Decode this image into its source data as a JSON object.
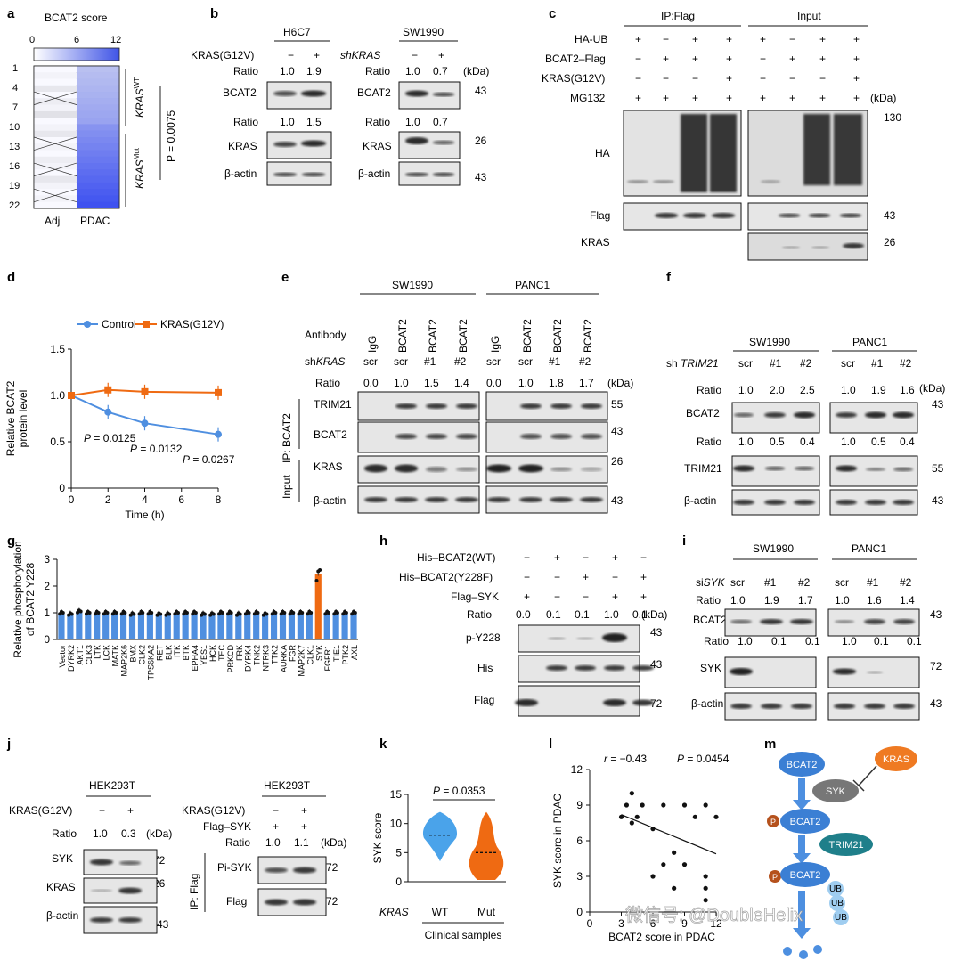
{
  "panels": {
    "a": "a",
    "b": "b",
    "c": "c",
    "d": "d",
    "e": "e",
    "f": "f",
    "g": "g",
    "h": "h",
    "i": "i",
    "j": "j",
    "k": "k",
    "l": "l",
    "m": "m"
  },
  "colors": {
    "blue": "#4f8fe0",
    "orange": "#ef6a12",
    "heat_dark": "#3f54e6",
    "heat_light": "#e8ebfb",
    "grey_bg": "#e6e6e6"
  },
  "a": {
    "title": "BCAT2 score",
    "scale_ticks": [
      "0",
      "6",
      "12"
    ],
    "rows": [
      "1",
      "4",
      "7",
      "10",
      "13",
      "16",
      "19",
      "22"
    ],
    "group_wt": "KRAS",
    "group_wt_sup": "WT",
    "group_mut": "KRAS",
    "group_mut_sup": "Mut",
    "pvalue": "P = 0.0075",
    "columns": [
      "Adj",
      "PDAC"
    ]
  },
  "b": {
    "left_cell": "H6C7",
    "right_cell": "SW1990",
    "left_treat": "KRAS(G12V)",
    "right_treat": "shKRAS",
    "left_signs": [
      "−",
      "+"
    ],
    "right_signs": [
      "−",
      "+"
    ],
    "ratio_label": "Ratio",
    "r1_left": [
      "1.0",
      "1.9"
    ],
    "r1_right": [
      "1.0",
      "0.7"
    ],
    "r2_left": [
      "1.0",
      "1.5"
    ],
    "r2_right": [
      "1.0",
      "0.7"
    ],
    "kda": "(kDa)",
    "blots": [
      "BCAT2",
      "KRAS",
      "β-actin"
    ],
    "mw": [
      "43",
      "26",
      "43"
    ]
  },
  "c": {
    "ip": "IP:Flag",
    "input": "Input",
    "rows": [
      "HA-UB",
      "BCAT2–Flag",
      "KRAS(G12V)",
      "MG132"
    ],
    "ip_signs": [
      [
        "+",
        "−",
        "+",
        "+"
      ],
      [
        "−",
        "+",
        "+",
        "+"
      ],
      [
        "−",
        "−",
        "−",
        "+"
      ],
      [
        "+",
        "+",
        "+",
        "+"
      ]
    ],
    "in_signs": [
      [
        "+",
        "−",
        "+",
        "+"
      ],
      [
        "−",
        "+",
        "+",
        "+"
      ],
      [
        "−",
        "−",
        "−",
        "+"
      ],
      [
        "+",
        "+",
        "+",
        "+"
      ]
    ],
    "kda": "(kDa)",
    "blots": [
      "HA",
      "Flag",
      "KRAS"
    ],
    "mw": [
      "130",
      "43",
      "26"
    ]
  },
  "d": {
    "chart_data": {
      "type": "line",
      "xlabel": "Time (h)",
      "ylabel": "Relative BCAT2 protein level",
      "xlim": [
        0,
        8
      ],
      "ylim": [
        0,
        1.5
      ],
      "xticks": [
        "0",
        "2",
        "4",
        "6",
        "8"
      ],
      "yticks": [
        "0",
        "0.5",
        "1.0",
        "1.5"
      ],
      "x": [
        0,
        2,
        4,
        8
      ],
      "series": [
        {
          "name": "Control",
          "values": [
            1.0,
            0.82,
            0.7,
            0.58
          ],
          "color": "#4f8fe0"
        },
        {
          "name": "KRAS(G12V)",
          "values": [
            1.0,
            1.06,
            1.04,
            1.03
          ],
          "color": "#ef6a12"
        }
      ],
      "annotations": [
        "P = 0.0125",
        "P = 0.0132",
        "P = 0.0267"
      ],
      "legend": "top"
    }
  },
  "e": {
    "cell_left": "SW1990",
    "cell_right": "PANC1",
    "antibody_label": "Antibody",
    "antibodies": [
      "IgG",
      "BCAT2",
      "BCAT2",
      "BCAT2"
    ],
    "sh_label": "shKRAS",
    "sh": [
      "scr",
      "scr",
      "#1",
      "#2"
    ],
    "ratio_label": "Ratio",
    "ratio_left": [
      "0.0",
      "1.0",
      "1.5",
      "1.4"
    ],
    "ratio_right": [
      "0.0",
      "1.0",
      "1.8",
      "1.7"
    ],
    "kda": "(kDa)",
    "ip_label": "IP: BCAT2",
    "input_label": "Input",
    "blots": [
      "TRIM21",
      "BCAT2",
      "KRAS",
      "β-actin"
    ],
    "mw": [
      "55",
      "43",
      "26",
      "43"
    ]
  },
  "f": {
    "cell_left": "SW1990",
    "cell_right": "PANC1",
    "sh_label": "sh TRIM21",
    "sh": [
      "scr",
      "#1",
      "#2"
    ],
    "ratio_label": "Ratio",
    "r1_left": [
      "1.0",
      "2.0",
      "2.5"
    ],
    "r1_right": [
      "1.0",
      "1.9",
      "1.6"
    ],
    "r2_left": [
      "1.0",
      "0.5",
      "0.4"
    ],
    "r2_right": [
      "1.0",
      "0.5",
      "0.4"
    ],
    "kda": "(kDa)",
    "blots": [
      "BCAT2",
      "TRIM21",
      "β-actin"
    ],
    "mw": [
      "43",
      "55",
      "43"
    ]
  },
  "g": {
    "chart_data": {
      "type": "bar",
      "ylabel": "Relative phosphorylation of BCAT2 Y228",
      "ylim": [
        0,
        3
      ],
      "yticks": [
        "0",
        "1",
        "2",
        "3"
      ],
      "categories": [
        "Vector",
        "DYRK2",
        "AKT1",
        "CLK3",
        "LTK",
        "LCK",
        "MATK",
        "MAP2K6",
        "BMX",
        "CLK2",
        "TPS6KA2",
        "RET",
        "BLK",
        "ITK",
        "BTK",
        "EPHA4",
        "YES1",
        "HCK",
        "TEC",
        "PRKCD",
        "FRK",
        "DYRK4",
        "TNK2",
        "NTRK3",
        "TTK2",
        "AURKA",
        "FGR",
        "MAP2K7",
        "CLK1",
        "SYK",
        "FGFR1",
        "TIE1",
        "PTK2",
        "AXL"
      ],
      "values": [
        1.0,
        0.95,
        1.05,
        1.0,
        1.0,
        1.0,
        1.0,
        1.0,
        0.95,
        1.0,
        1.0,
        0.95,
        0.95,
        1.0,
        1.0,
        1.0,
        0.95,
        0.95,
        1.0,
        1.0,
        0.95,
        1.0,
        1.0,
        0.95,
        1.0,
        1.0,
        1.0,
        1.0,
        1.0,
        2.45,
        1.0,
        1.0,
        1.0,
        1.0
      ],
      "highlight": "SYK"
    }
  },
  "h": {
    "rows": [
      "His–BCAT2(WT)",
      "His–BCAT2(Y228F)",
      "Flag–SYK"
    ],
    "signs": [
      [
        "−",
        "+",
        "−",
        "+",
        "−"
      ],
      [
        "−",
        "−",
        "+",
        "−",
        "+"
      ],
      [
        "+",
        "−",
        "−",
        "+",
        "+"
      ]
    ],
    "ratio_label": "Ratio",
    "ratio": [
      "0.0",
      "0.1",
      "0.1",
      "1.0",
      "0.1"
    ],
    "kda": "(kDa)",
    "blots": [
      "p-Y228",
      "His",
      "Flag"
    ],
    "mw": [
      "43",
      "43",
      "72"
    ]
  },
  "i": {
    "cell_left": "SW1990",
    "cell_right": "PANC1",
    "si_label": "siSYK",
    "si": [
      "scr",
      "#1",
      "#2"
    ],
    "ratio_label": "Ratio",
    "r1_left": [
      "1.0",
      "1.9",
      "1.7"
    ],
    "r1_right": [
      "1.0",
      "1.6",
      "1.4"
    ],
    "r2_left": [
      "1.0",
      "0.1",
      "0.1"
    ],
    "r2_right": [
      "1.0",
      "0.1",
      "0.1"
    ],
    "blots": [
      "BCAT2",
      "SYK",
      "β-actin"
    ],
    "mw": [
      "43",
      "72",
      "43"
    ]
  },
  "j": {
    "cell": "HEK293T",
    "left_treat": "KRAS(G12V)",
    "left_signs": [
      "−",
      "+"
    ],
    "left_ratio": [
      "1.0",
      "0.3"
    ],
    "ratio_label": "Ratio",
    "kda": "(kDa)",
    "left_blots": [
      "SYK",
      "KRAS",
      "β-actin"
    ],
    "left_mw": [
      "72",
      "26",
      "43"
    ],
    "right_rows": [
      "KRAS(G12V)",
      "Flag–SYK"
    ],
    "right_signs": [
      [
        "−",
        "+"
      ],
      [
        "+",
        "+"
      ]
    ],
    "right_ratio": [
      "1.0",
      "1.1"
    ],
    "ip_label": "IP: Flag",
    "right_blots": [
      "Pi-SYK",
      "Flag"
    ],
    "right_mw": [
      "72",
      "72"
    ]
  },
  "k": {
    "chart_data": {
      "type": "violin",
      "ylabel": "SYK score",
      "ylim": [
        0,
        15
      ],
      "yticks": [
        "0",
        "5",
        "10",
        "15"
      ],
      "categories": [
        "WT",
        "Mut"
      ],
      "medians": [
        8,
        5
      ],
      "range": [
        [
          3.5,
          12
        ],
        [
          0,
          12
        ]
      ],
      "colors": [
        "#4aa3ea",
        "#ef6a12"
      ],
      "pvalue": "P = 0.0353",
      "group_label": "KRAS",
      "xlabel": "Clinical samples"
    }
  },
  "l": {
    "chart_data": {
      "type": "scatter",
      "xlabel": "BCAT2 score in PDAC",
      "ylabel": "SYK score in PDAC",
      "xlim": [
        0,
        12
      ],
      "ylim": [
        0,
        12
      ],
      "xticks": [
        "0",
        "3",
        "6",
        "9",
        "12"
      ],
      "yticks": [
        "0",
        "3",
        "6",
        "9",
        "12"
      ],
      "points": [
        [
          3,
          8
        ],
        [
          3.5,
          9
        ],
        [
          4,
          10
        ],
        [
          4,
          7.5
        ],
        [
          4.5,
          8
        ],
        [
          5,
          9
        ],
        [
          6,
          7
        ],
        [
          6,
          3
        ],
        [
          7,
          4
        ],
        [
          7,
          9
        ],
        [
          8,
          2
        ],
        [
          8,
          5
        ],
        [
          9,
          4
        ],
        [
          9,
          9
        ],
        [
          10,
          8
        ],
        [
          11,
          9
        ],
        [
          11,
          3
        ],
        [
          11,
          1
        ],
        [
          11,
          2
        ],
        [
          12,
          8
        ]
      ],
      "fit": {
        "x0": 3,
        "y0": 8.2,
        "x1": 12,
        "y1": 4.9
      },
      "r_label": "r = −0.43",
      "pvalue": "P = 0.0454"
    }
  },
  "m": {
    "nodes": [
      "BCAT2",
      "SYK",
      "KRAS",
      "BCAT2",
      "TRIM21",
      "BCAT2"
    ],
    "p": "P",
    "ub": [
      "UB",
      "UB",
      "UB"
    ]
  },
  "watermark": "微信号: @DoubleHelix"
}
